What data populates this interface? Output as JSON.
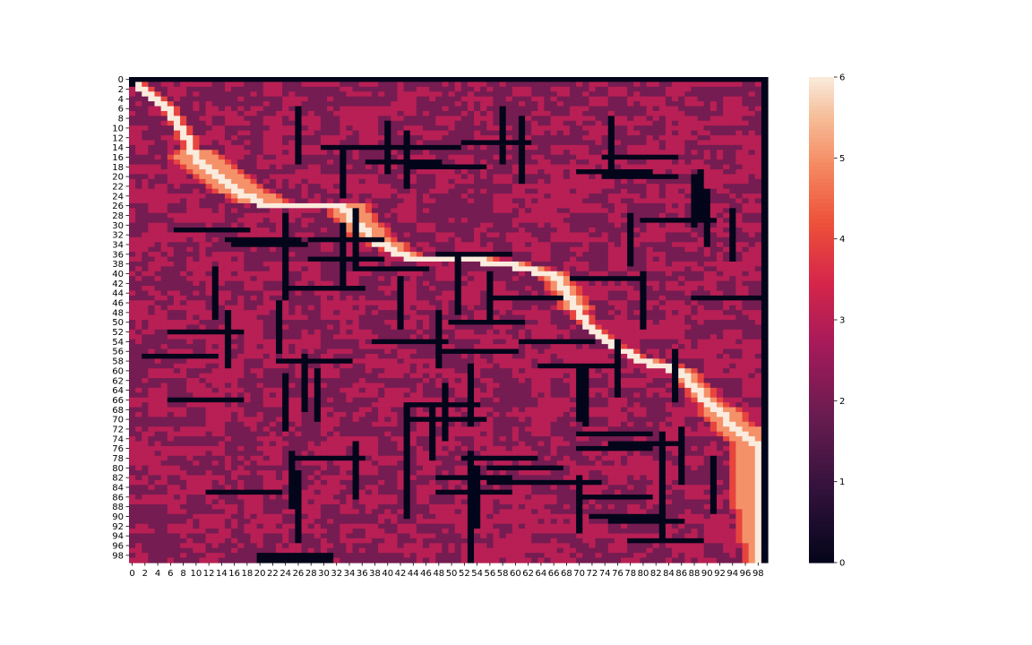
{
  "chart_data": {
    "type": "heatmap",
    "title": "",
    "xlabel": "",
    "ylabel": "",
    "rows": 100,
    "cols": 100,
    "x_tick_labels": [
      "0",
      "2",
      "4",
      "6",
      "8",
      "10",
      "12",
      "14",
      "16",
      "18",
      "20",
      "22",
      "24",
      "26",
      "28",
      "30",
      "32",
      "34",
      "36",
      "38",
      "40",
      "42",
      "44",
      "46",
      "48",
      "50",
      "52",
      "54",
      "56",
      "58",
      "60",
      "62",
      "64",
      "66",
      "68",
      "70",
      "72",
      "74",
      "76",
      "78",
      "80",
      "82",
      "84",
      "86",
      "88",
      "90",
      "92",
      "94",
      "96",
      "98"
    ],
    "y_tick_labels": [
      "0",
      "2",
      "4",
      "6",
      "8",
      "10",
      "12",
      "14",
      "16",
      "18",
      "20",
      "22",
      "24",
      "26",
      "28",
      "30",
      "32",
      "34",
      "36",
      "38",
      "40",
      "42",
      "44",
      "46",
      "48",
      "50",
      "52",
      "54",
      "56",
      "58",
      "60",
      "62",
      "64",
      "66",
      "68",
      "70",
      "72",
      "74",
      "76",
      "78",
      "80",
      "82",
      "84",
      "86",
      "88",
      "90",
      "92",
      "94",
      "96",
      "98"
    ],
    "colorbar": {
      "min": 0,
      "max": 6,
      "tick_labels": [
        "0",
        "1",
        "2",
        "3",
        "4",
        "5",
        "6"
      ],
      "colormap": "rocket"
    },
    "value_scale": {
      "obstacle": 0,
      "background_low": 2,
      "background_high": 3,
      "path_halo_outer": 4,
      "path_band": 5,
      "path_center": 6
    },
    "path_waypoints": [
      [
        1,
        1
      ],
      [
        5,
        5
      ],
      [
        8,
        7
      ],
      [
        16,
        10
      ],
      [
        22,
        16
      ],
      [
        25,
        20
      ],
      [
        24,
        25
      ],
      [
        22,
        30
      ],
      [
        26,
        33
      ],
      [
        33,
        38
      ],
      [
        36,
        43
      ],
      [
        33,
        47
      ],
      [
        33,
        52
      ],
      [
        37,
        55
      ],
      [
        38,
        60
      ],
      [
        40,
        66
      ],
      [
        44,
        68
      ],
      [
        50,
        71
      ],
      [
        55,
        76
      ],
      [
        58,
        81
      ],
      [
        60,
        86
      ],
      [
        66,
        90
      ],
      [
        72,
        95
      ],
      [
        75,
        98
      ],
      [
        99,
        98
      ]
    ],
    "path_band_halfwidth": [
      [
        0,
        0
      ],
      [
        14,
        0
      ],
      [
        16,
        3
      ],
      [
        22,
        3
      ],
      [
        30,
        2
      ],
      [
        38,
        1
      ],
      [
        44,
        1
      ],
      [
        50,
        0
      ],
      [
        56,
        0
      ],
      [
        60,
        1
      ],
      [
        66,
        1
      ],
      [
        70,
        2
      ],
      [
        74,
        3
      ],
      [
        85,
        3
      ],
      [
        99,
        1
      ]
    ],
    "obstacles": [
      {
        "o": "v",
        "c": 26,
        "s": 6,
        "e": 17
      },
      {
        "o": "v",
        "c": 40,
        "s": 9,
        "e": 19
      },
      {
        "o": "v",
        "c": 43,
        "s": 11,
        "e": 22
      },
      {
        "o": "v",
        "c": 58,
        "s": 6,
        "e": 17
      },
      {
        "o": "v",
        "c": 61,
        "s": 8,
        "e": 21
      },
      {
        "o": "v",
        "c": 75,
        "s": 8,
        "e": 19
      },
      {
        "o": "v",
        "c": 33,
        "s": 15,
        "e": 24
      },
      {
        "o": "v",
        "c": 88,
        "s": 20,
        "e": 30
      },
      {
        "o": "v",
        "c": 89,
        "s": 19,
        "e": 28
      },
      {
        "o": "v",
        "c": 90,
        "s": 23,
        "e": 34
      },
      {
        "o": "v",
        "c": 94,
        "s": 27,
        "e": 37
      },
      {
        "o": "v",
        "c": 78,
        "s": 28,
        "e": 38
      },
      {
        "o": "v",
        "c": 24,
        "s": 28,
        "e": 45
      },
      {
        "o": "v",
        "c": 35,
        "s": 27,
        "e": 39
      },
      {
        "o": "v",
        "c": 33,
        "s": 30,
        "e": 42
      },
      {
        "o": "v",
        "c": 13,
        "s": 39,
        "e": 49
      },
      {
        "o": "v",
        "c": 51,
        "s": 37,
        "e": 48
      },
      {
        "o": "v",
        "c": 56,
        "s": 40,
        "e": 50
      },
      {
        "o": "v",
        "c": 42,
        "s": 41,
        "e": 51
      },
      {
        "o": "v",
        "c": 80,
        "s": 40,
        "e": 51
      },
      {
        "o": "v",
        "c": 23,
        "s": 46,
        "e": 56
      },
      {
        "o": "v",
        "c": 15,
        "s": 48,
        "e": 59
      },
      {
        "o": "v",
        "c": 48,
        "s": 48,
        "e": 59
      },
      {
        "o": "v",
        "c": 76,
        "s": 54,
        "e": 65
      },
      {
        "o": "v",
        "c": 27,
        "s": 57,
        "e": 68
      },
      {
        "o": "v",
        "c": 29,
        "s": 60,
        "e": 70
      },
      {
        "o": "v",
        "c": 24,
        "s": 61,
        "e": 72
      },
      {
        "o": "v",
        "c": 53,
        "s": 59,
        "e": 71
      },
      {
        "o": "v",
        "c": 70,
        "s": 59,
        "e": 70
      },
      {
        "o": "v",
        "c": 71,
        "s": 59,
        "e": 71
      },
      {
        "o": "v",
        "c": 85,
        "s": 56,
        "e": 66
      },
      {
        "o": "v",
        "c": 43,
        "s": 67,
        "e": 78
      },
      {
        "o": "v",
        "c": 47,
        "s": 67,
        "e": 78
      },
      {
        "o": "v",
        "c": 49,
        "s": 63,
        "e": 74
      },
      {
        "o": "v",
        "c": 35,
        "s": 75,
        "e": 86
      },
      {
        "o": "v",
        "c": 25,
        "s": 77,
        "e": 88
      },
      {
        "o": "v",
        "c": 26,
        "s": 81,
        "e": 95
      },
      {
        "o": "v",
        "c": 43,
        "s": 79,
        "e": 90
      },
      {
        "o": "v",
        "c": 53,
        "s": 77,
        "e": 99
      },
      {
        "o": "v",
        "c": 54,
        "s": 80,
        "e": 92
      },
      {
        "o": "v",
        "c": 70,
        "s": 82,
        "e": 93
      },
      {
        "o": "v",
        "c": 83,
        "s": 73,
        "e": 95
      },
      {
        "o": "v",
        "c": 86,
        "s": 72,
        "e": 83
      },
      {
        "o": "v",
        "c": 91,
        "s": 78,
        "e": 89
      },
      {
        "o": "h",
        "r": 14,
        "s": 30,
        "e": 51
      },
      {
        "o": "h",
        "r": 13,
        "s": 52,
        "e": 62
      },
      {
        "o": "h",
        "r": 16,
        "s": 74,
        "e": 85
      },
      {
        "o": "h",
        "r": 17,
        "s": 37,
        "e": 48
      },
      {
        "o": "h",
        "r": 18,
        "s": 44,
        "e": 55
      },
      {
        "o": "h",
        "r": 19,
        "s": 70,
        "e": 81
      },
      {
        "o": "h",
        "r": 20,
        "s": 74,
        "e": 85
      },
      {
        "o": "h",
        "r": 29,
        "s": 80,
        "e": 91
      },
      {
        "o": "h",
        "r": 31,
        "s": 7,
        "e": 18
      },
      {
        "o": "h",
        "r": 33,
        "s": 15,
        "e": 26
      },
      {
        "o": "h",
        "r": 34,
        "s": 16,
        "e": 27
      },
      {
        "o": "h",
        "r": 33,
        "s": 28,
        "e": 39
      },
      {
        "o": "h",
        "r": 36,
        "s": 48,
        "e": 59
      },
      {
        "o": "h",
        "r": 37,
        "s": 28,
        "e": 39
      },
      {
        "o": "h",
        "r": 39,
        "s": 35,
        "e": 46
      },
      {
        "o": "h",
        "r": 41,
        "s": 69,
        "e": 80
      },
      {
        "o": "h",
        "r": 43,
        "s": 24,
        "e": 36
      },
      {
        "o": "h",
        "r": 45,
        "s": 56,
        "e": 67
      },
      {
        "o": "h",
        "r": 45,
        "s": 88,
        "e": 99
      },
      {
        "o": "h",
        "r": 50,
        "s": 50,
        "e": 61
      },
      {
        "o": "h",
        "r": 52,
        "s": 6,
        "e": 17
      },
      {
        "o": "h",
        "r": 54,
        "s": 38,
        "e": 49
      },
      {
        "o": "h",
        "r": 54,
        "s": 61,
        "e": 72
      },
      {
        "o": "h",
        "r": 56,
        "s": 48,
        "e": 60
      },
      {
        "o": "h",
        "r": 57,
        "s": 2,
        "e": 13
      },
      {
        "o": "h",
        "r": 58,
        "s": 23,
        "e": 34
      },
      {
        "o": "h",
        "r": 59,
        "s": 64,
        "e": 76
      },
      {
        "o": "h",
        "r": 66,
        "s": 6,
        "e": 17
      },
      {
        "o": "h",
        "r": 67,
        "s": 43,
        "e": 54
      },
      {
        "o": "h",
        "r": 70,
        "s": 43,
        "e": 55
      },
      {
        "o": "h",
        "r": 73,
        "s": 70,
        "e": 81
      },
      {
        "o": "h",
        "r": 75,
        "s": 75,
        "e": 86
      },
      {
        "o": "h",
        "r": 76,
        "s": 70,
        "e": 81
      },
      {
        "o": "h",
        "r": 78,
        "s": 25,
        "e": 36
      },
      {
        "o": "h",
        "r": 78,
        "s": 52,
        "e": 63
      },
      {
        "o": "h",
        "r": 80,
        "s": 56,
        "e": 67
      },
      {
        "o": "h",
        "r": 82,
        "s": 48,
        "e": 59
      },
      {
        "o": "h",
        "r": 83,
        "s": 56,
        "e": 73
      },
      {
        "o": "h",
        "r": 85,
        "s": 12,
        "e": 23
      },
      {
        "o": "h",
        "r": 85,
        "s": 48,
        "e": 59
      },
      {
        "o": "h",
        "r": 86,
        "s": 70,
        "e": 81
      },
      {
        "o": "h",
        "r": 90,
        "s": 72,
        "e": 83
      },
      {
        "o": "h",
        "r": 91,
        "s": 75,
        "e": 86
      },
      {
        "o": "h",
        "r": 95,
        "s": 78,
        "e": 89
      },
      {
        "o": "h",
        "r": 98,
        "s": 20,
        "e": 31
      },
      {
        "o": "h",
        "r": 99,
        "s": 20,
        "e": 31
      }
    ]
  }
}
